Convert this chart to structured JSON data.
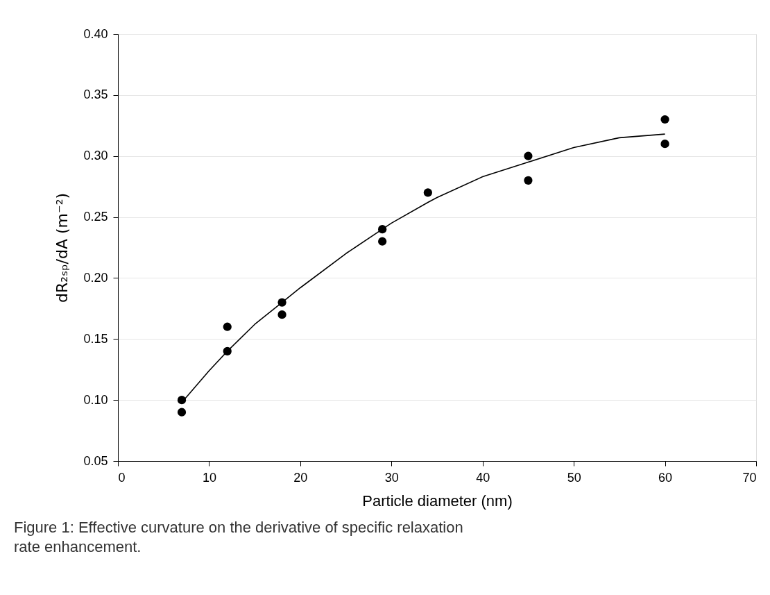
{
  "chart_data": {
    "type": "scatter",
    "xlabel": "Particle diameter (nm)",
    "ylabel": "dR₂ₛₚ/dA (m⁻²)",
    "annotations": [
      "Figure 1: Effective curvature on the derivative of specific relaxation rate enhancement."
    ],
    "xlim": [
      0,
      70
    ],
    "xticks": [
      0,
      10,
      20,
      30,
      40,
      50,
      60,
      70
    ],
    "ylim": [
      0.05,
      0.4
    ],
    "yticks": [
      {
        "value": 0.05,
        "label": "0.05"
      },
      {
        "value": 0.1,
        "label": "0.10"
      },
      {
        "value": 0.15,
        "label": "0.15"
      },
      {
        "value": 0.2,
        "label": "0.20"
      },
      {
        "value": 0.25,
        "label": "0.25"
      },
      {
        "value": 0.3,
        "label": "0.30"
      },
      {
        "value": 0.35,
        "label": "0.35"
      },
      {
        "value": 0.4,
        "label": "0.40"
      }
    ],
    "grid": "y",
    "series": [
      {
        "color": "#000000",
        "marker": "circle",
        "x": [
          7,
          7,
          12,
          12,
          18,
          18,
          29,
          29,
          34,
          45,
          45,
          60,
          60
        ],
        "values": [
          0.1,
          0.09,
          0.16,
          0.14,
          0.18,
          0.17,
          0.24,
          0.23,
          0.27,
          0.3,
          0.28,
          0.33,
          0.31
        ]
      },
      {
        "type": "line",
        "color": "#000000",
        "line_style": "solid",
        "x": [
          7,
          10,
          12,
          15,
          18,
          20,
          25,
          29,
          30,
          34,
          35,
          40,
          45,
          50,
          55,
          60
        ],
        "values": [
          0.098,
          0.124,
          0.14,
          0.162,
          0.18,
          0.192,
          0.22,
          0.24,
          0.245,
          0.262,
          0.266,
          0.283,
          0.295,
          0.307,
          0.315,
          0.318
        ]
      }
    ]
  }
}
